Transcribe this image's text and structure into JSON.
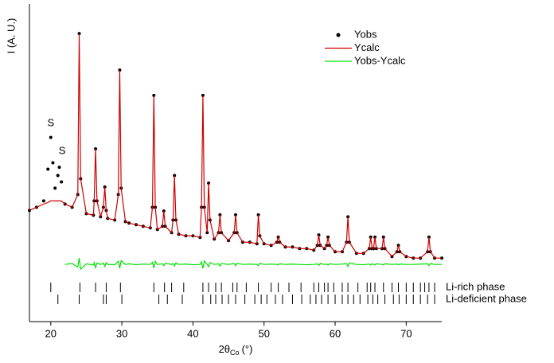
{
  "chart_data": {
    "type": "line",
    "y_label": "I (A. U.)",
    "x_label": {
      "main": "2θ",
      "sub": "Co",
      "unit": "(°)"
    },
    "xlim": [
      17,
      75
    ],
    "xticks": [
      20,
      30,
      40,
      50,
      60,
      70
    ],
    "ylim": [
      0,
      100
    ],
    "legend": "upper right",
    "x": [
      17,
      18,
      19,
      19.6,
      20,
      20.3,
      20.6,
      21,
      21.2,
      21.5,
      22,
      23,
      23.8,
      24,
      24.2,
      25,
      26,
      26.1,
      26.3,
      26.5,
      27,
      27.4,
      27.6,
      27.8,
      28,
      29,
      29.5,
      29.7,
      29.9,
      30.5,
      31,
      32,
      33,
      34,
      34.3,
      34.5,
      34.7,
      35,
      35.7,
      35.9,
      36.1,
      37,
      37.2,
      37.4,
      37.6,
      38,
      39,
      40,
      41,
      41.2,
      41.4,
      41.6,
      42,
      42.2,
      42.4,
      43,
      43.6,
      43.8,
      44,
      45,
      45.8,
      46,
      46.2,
      47,
      48,
      49,
      49.2,
      49.4,
      50,
      51,
      51.8,
      52,
      52.2,
      53,
      54,
      55,
      56,
      57,
      57.5,
      57.7,
      57.9,
      58.5,
      58.8,
      59,
      59.2,
      60,
      61,
      61.6,
      61.8,
      62,
      63,
      64,
      64.8,
      65,
      65.2,
      65.4,
      65.6,
      65.8,
      66.6,
      66.8,
      67,
      68,
      68.7,
      68.9,
      69.1,
      70,
      71,
      72,
      73,
      73.2,
      73.4,
      74,
      75
    ],
    "series": [
      {
        "name": "Yobs",
        "color": "#000000",
        "style": "dots",
        "values": [
          35,
          36,
          38,
          48,
          58,
          50,
          42,
          46,
          48.6,
          44,
          37,
          36,
          40,
          90.7,
          45,
          34,
          33.5,
          38,
          54.4,
          38,
          33,
          36,
          42.4,
          35,
          32.5,
          32,
          40,
          79.2,
          42,
          31.5,
          31,
          30.5,
          30,
          29.5,
          36,
          71.2,
          36,
          29,
          30,
          34.8,
          30,
          28,
          32,
          46,
          32,
          27.5,
          27,
          27,
          26.5,
          36,
          71.2,
          36,
          28,
          43.6,
          32,
          26,
          28,
          33.6,
          28,
          25.5,
          28,
          33.6,
          28,
          25,
          25,
          24.5,
          33.6,
          27,
          24.5,
          24,
          25,
          26.6,
          25,
          23.5,
          23.5,
          23,
          23,
          22.5,
          24,
          27.3,
          24,
          23,
          24,
          26.6,
          24,
          22,
          22,
          25,
          33,
          25,
          21.5,
          21.5,
          23,
          26.6,
          23,
          23,
          26.6,
          23,
          23,
          26.6,
          23,
          20.5,
          22,
          24,
          22,
          20.5,
          20,
          20,
          22,
          26.6,
          22,
          20,
          20
        ]
      },
      {
        "name": "Ycalc",
        "color": "#cc0000",
        "style": "line",
        "values": [
          35,
          36,
          37,
          37.5,
          38,
          38,
          38,
          38,
          38,
          38,
          37,
          36,
          40,
          90.7,
          45,
          34,
          33.5,
          38,
          54.4,
          38,
          33,
          36,
          42.4,
          35,
          32.5,
          32,
          40,
          79.2,
          42,
          31.5,
          31,
          30.5,
          30,
          29.5,
          36,
          71.2,
          36,
          29,
          30,
          34.8,
          30,
          28,
          32,
          46,
          32,
          27.5,
          27,
          27,
          26.5,
          36,
          71.2,
          36,
          28,
          43.6,
          32,
          26,
          28,
          33.6,
          28,
          25.5,
          28,
          33.6,
          28,
          25,
          25,
          24.5,
          33.6,
          27,
          24.5,
          24,
          25,
          26.6,
          25,
          23.5,
          23.5,
          23,
          23,
          22.5,
          24,
          27.3,
          24,
          23,
          24,
          26.6,
          24,
          22,
          22,
          25,
          33,
          25,
          21.5,
          21.5,
          23,
          26.6,
          23,
          23,
          26.6,
          23,
          23,
          26.6,
          23,
          20.5,
          22,
          24,
          22,
          20.5,
          20,
          20,
          22,
          26.6,
          22,
          20,
          20
        ]
      },
      {
        "name": "Yobs-Ycalc",
        "color": "#00e000",
        "style": "line",
        "values": [
          null,
          null,
          null,
          null,
          null,
          null,
          null,
          null,
          null,
          null,
          18,
          18.3,
          17.2,
          20,
          16.5,
          18.2,
          17.8,
          18.6,
          17,
          18.5,
          18,
          18.4,
          17.4,
          18.6,
          18,
          17.9,
          19,
          16.8,
          19.2,
          18,
          18.2,
          17.9,
          18.1,
          18,
          18.7,
          16.9,
          19,
          18,
          18.2,
          17.6,
          18.4,
          18,
          18.3,
          17.5,
          18.5,
          18,
          18.1,
          17.9,
          18,
          18.8,
          16.8,
          19.1,
          18,
          17.3,
          18.6,
          18,
          18.2,
          17.5,
          18.3,
          18,
          18.3,
          17.6,
          18.4,
          18,
          18.1,
          18,
          17.6,
          18.4,
          18,
          18.1,
          18,
          17.8,
          18.2,
          18,
          18.1,
          18,
          17.9,
          18,
          18.2,
          17.7,
          18.3,
          18,
          18.1,
          17.8,
          18.2,
          18,
          18.1,
          18.3,
          17.4,
          18.5,
          18,
          17.9,
          18.1,
          17.8,
          18.2,
          18,
          17.8,
          18.2,
          18,
          17.8,
          18.2,
          18,
          18.1,
          17.9,
          18.1,
          18,
          18,
          18.1,
          18.2,
          17.6,
          18.3,
          18,
          18
        ]
      }
    ],
    "annotations": [
      {
        "text": "S",
        "x": 20,
        "y": 62.4
      },
      {
        "text": "S",
        "x": 21.6,
        "y": 53.6
      }
    ],
    "reflections": [
      {
        "name": "Li-rich phase",
        "color": "#000000",
        "x": [
          20.0,
          24.1,
          26.3,
          27.8,
          29.8,
          34.5,
          36.0,
          37.0,
          38.7,
          41.4,
          42.2,
          43.2,
          44.0,
          45.6,
          46.2,
          47.5,
          49.2,
          51.0,
          52.0,
          53.5,
          55.2,
          57.0,
          57.7,
          58.5,
          59.0,
          59.8,
          61.0,
          61.8,
          63.2,
          64.5,
          65.0,
          65.6,
          66.8,
          68.0,
          68.9,
          70.0,
          71.0,
          72.0,
          72.6,
          73.2,
          74.0
        ]
      },
      {
        "name": "Li-deficient phase",
        "color": "#000000",
        "x": [
          21.0,
          24.0,
          27.4,
          27.8,
          30.0,
          35.2,
          36.4,
          38.5,
          41.4,
          42.5,
          43.2,
          44.1,
          45.0,
          46.0,
          47.3,
          48.7,
          49.6,
          50.4,
          51.6,
          52.6,
          54.0,
          55.3,
          56.5,
          57.3,
          58.1,
          59.0,
          60.0,
          61.0,
          61.8,
          62.6,
          63.5,
          64.6,
          65.3,
          66.0,
          67.0,
          68.2,
          69.0,
          70.0,
          71.0,
          72.0,
          73.0,
          74.0
        ]
      }
    ]
  }
}
